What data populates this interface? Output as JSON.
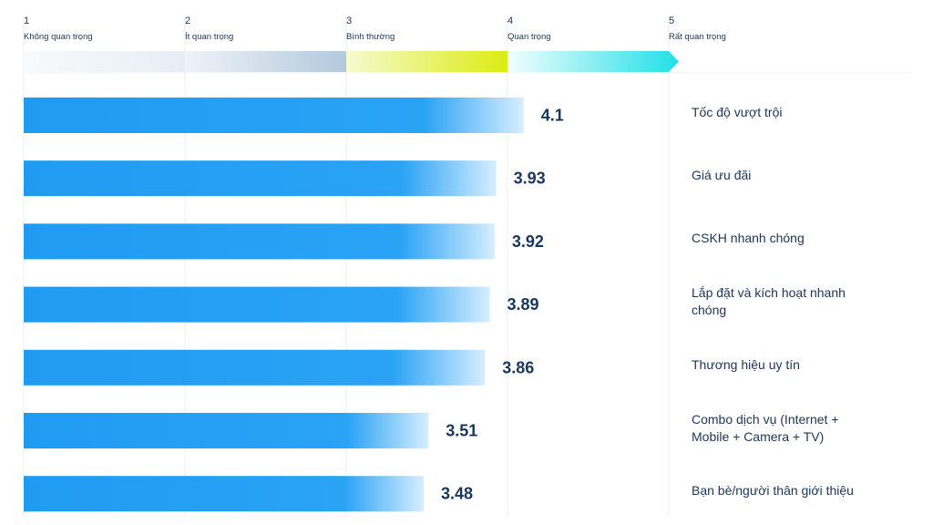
{
  "chart_data": {
    "type": "bar",
    "orientation": "horizontal",
    "scale": [
      {
        "number": "1",
        "label": "Không quan trọng"
      },
      {
        "number": "2",
        "label": "Ít quan trọng"
      },
      {
        "number": "3",
        "label": "Bình thường"
      },
      {
        "number": "4",
        "label": "Quan trọng"
      },
      {
        "number": "5",
        "label": "Rất quan trọng"
      }
    ],
    "categories": [
      "Tốc độ vượt trội",
      "Giá ưu đãi",
      "CSKH nhanh chóng",
      "Lắp đặt và kích hoạt nhanh chóng",
      "Thương hiệu uy tín",
      "Combo dịch vụ (Internet + Mobile + Camera + TV)",
      "Bạn bè/người thân giới thiệu"
    ],
    "values": [
      4.1,
      3.93,
      3.92,
      3.89,
      3.86,
      3.51,
      3.48
    ],
    "value_labels": [
      "4.1",
      "3.93",
      "3.92",
      "3.89",
      "3.86",
      "3.51",
      "3.48"
    ],
    "xlim": [
      1,
      5
    ],
    "grid": true,
    "colors": {
      "bar": "#1f9bf2",
      "bar_fade": "#d6eeff",
      "label": "#17375e",
      "seg_1": "#f4f8fb",
      "seg_2": "#b9cee0",
      "seg_3": "#dfee1d",
      "seg_4": "#2fe0e8",
      "grid": "#e9eef2"
    }
  }
}
